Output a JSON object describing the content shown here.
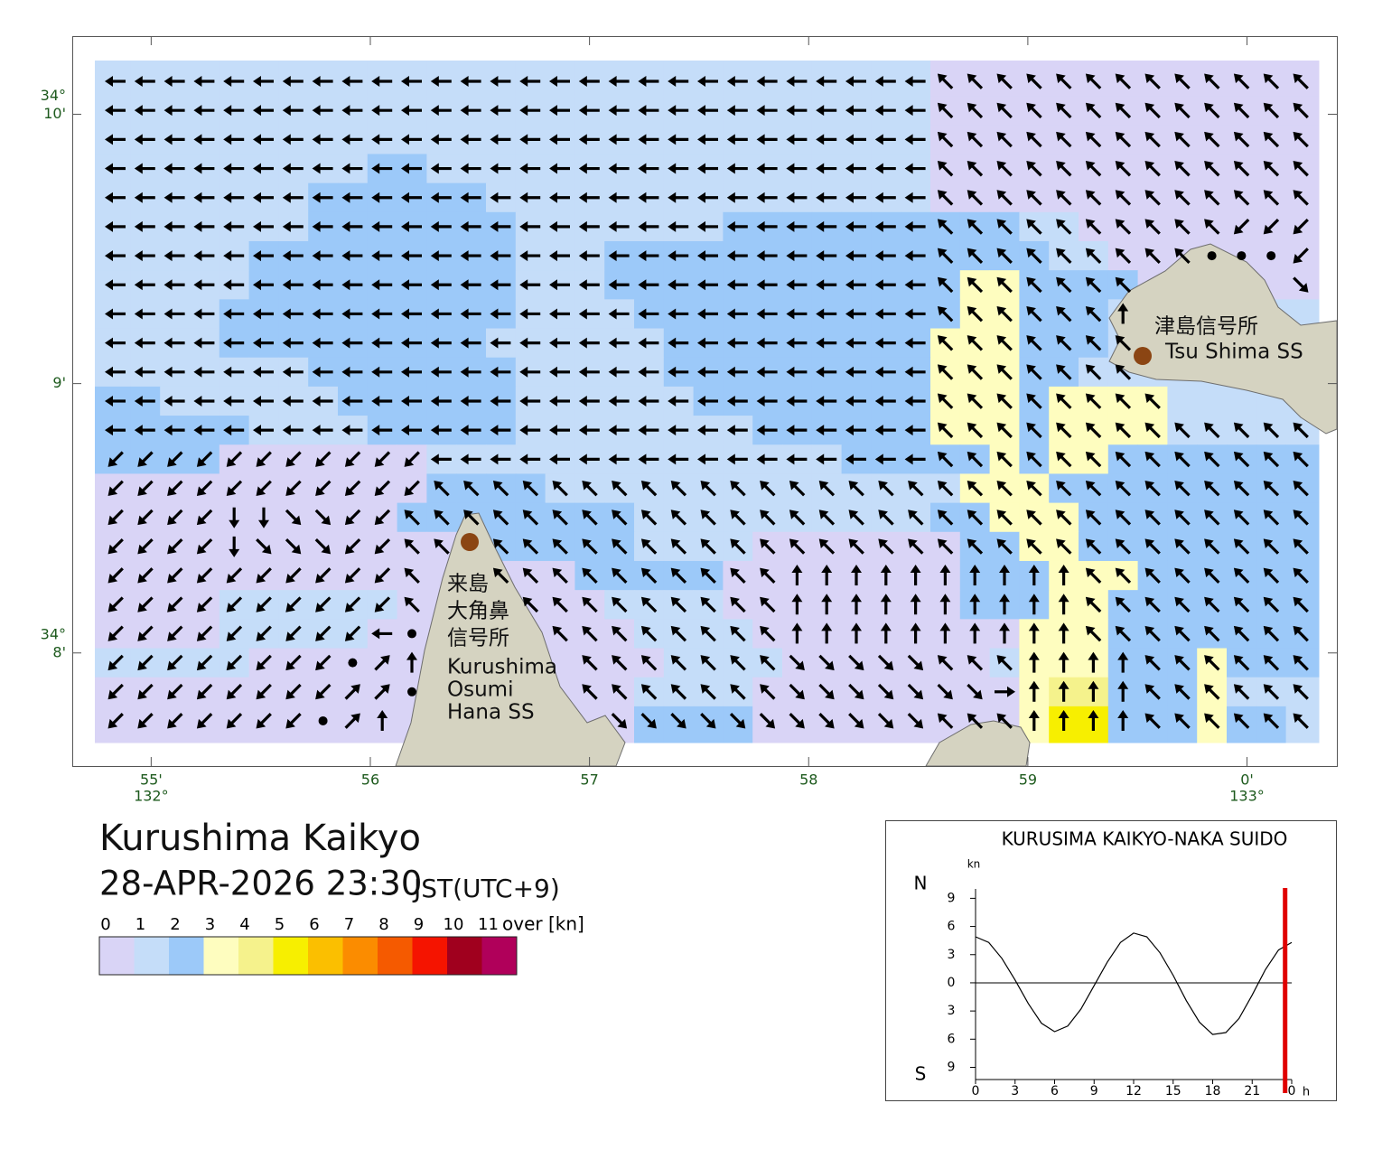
{
  "header": {
    "title": "Kurushima Kaikyo",
    "datetime": "28-APR-2026 23:30",
    "timezone": "JST(UTC+9)"
  },
  "legend": {
    "ticks": [
      0,
      1,
      2,
      3,
      4,
      5,
      6,
      7,
      8,
      9,
      10,
      11
    ],
    "unit": "over [kn]",
    "colors": [
      "#d9d4f6",
      "#c5ddf9",
      "#9cc9f9",
      "#fefdbf",
      "#f5f28c",
      "#f7ef00",
      "#fbbf00",
      "#fb8c00",
      "#f55a00",
      "#f51400",
      "#a0001e",
      "#b0005a"
    ]
  },
  "map": {
    "xlim": [
      54.64,
      60.41
    ],
    "ylim": [
      7.58,
      10.29
    ],
    "xticks": [
      {
        "value": 55,
        "label": "55'",
        "degree": "132°"
      },
      56,
      57,
      58,
      59,
      {
        "value": 60,
        "label": "0'",
        "degree": "133°"
      }
    ],
    "yticks": [
      {
        "value": 10,
        "label": "10'",
        "degree": "34°"
      },
      {
        "value": 9,
        "label": "9'"
      },
      {
        "value": 8,
        "label": "8'",
        "degree": "34°"
      }
    ],
    "sites": [
      {
        "lines": [
          "来島",
          "大角鼻",
          "信号所",
          "Kurushima",
          "Osumi",
          "Hana SS"
        ]
      },
      {
        "lines": [
          "津島信号所",
          "Tsu Shima SS"
        ]
      }
    ],
    "field": {
      "direction": [
        "44444444444444444444444444443333333333333",
        "44444444444444444444444444443333333333333",
        "44444444444444444444444444443333333333333",
        "44444444444444444444444444443333333333333",
        "44444444444444444444444444443333333333333",
        "44444444444444444444444444443333333333555",
        "44444444444444444444444444443333333338885",
        "44444444444444444444444444443333333999997",
        "44444444444444444444444444443333332999999",
        "44444444444444444444444444443333333999999",
        "44444444444444444444444444443333333999999",
        "44444444444444444444444444443333333399999",
        "44444444444444444444444444443333333333333",
        "55555555555444444444444444443333333333333",
        "55555555555333333333333333333333333333333",
        "55556677553333333333333333333333333333333",
        "55556777553393333333333333333333333333333",
        "55555555553993333333333222222222233333333",
        "55555555553999333333333222222222233333333",
        "55555555548999933333333222222222233333333",
        "55555555812999993333333777773332222333333",
        "55555555118999993333333777777702222333333",
        "55555558129999999777777777773332222333333"
      ],
      "speed": [
        "11111111111111111111111111110000000000000",
        "11111111111111111111111111110000000000000",
        "11111111111111111111111111110000000000000",
        "11111111122111111111111111110000000000000",
        "11111112222221111111111111110000000000000",
        "11111112222222111111122222222221100000000",
        "11111222222222111222222222222222110000000",
        "11111222222222111222222222222332222000000",
        "11112222222222111122222222222332221111111",
        "11112222222221111112222222223332221111111",
        "11111112222222111112222222223332211111111",
        "22111111222222111111222222223332333311111",
        "22222111122222111111112222223332333311111",
        "22220000000111111111111112222232332222222",
        "00000000000222211111111111111333222222222",
        "00000000002222222211111111112233322222222",
        "00000000000012222211110000000223322222222",
        "00000000000000002222200000000222333222222",
        "00001111110000000111100000000222332222222",
        "00001111100000000011110000000003332222222",
        "11111000000000000001111000000013332223222",
        "00000000000000000011110000000003442223111",
        "00000000000000000022220000000003552223221"
      ]
    }
  },
  "tide_chart": {
    "type": "line",
    "title": "KURUSIMA KAIKYO-NAKA SUIDO",
    "unit": "kn",
    "north": "N",
    "south": "S",
    "x_unit": "h",
    "x": [
      0,
      1,
      2,
      3,
      4,
      5,
      6,
      7,
      8,
      9,
      10,
      11,
      12,
      13,
      14,
      15,
      16,
      17,
      18,
      19,
      20,
      21,
      22,
      23,
      24
    ],
    "values": [
      4.9,
      4.3,
      2.6,
      0.3,
      -2.2,
      -4.3,
      -5.2,
      -4.6,
      -2.8,
      -0.3,
      2.2,
      4.3,
      5.3,
      4.9,
      3.2,
      0.8,
      -1.9,
      -4.2,
      -5.5,
      -5.3,
      -3.8,
      -1.3,
      1.4,
      3.5,
      4.3
    ],
    "color": "#000000",
    "xlim": [
      0,
      24
    ],
    "ylim": [
      -10.3,
      10
    ],
    "xticks": [
      0,
      3,
      6,
      9,
      12,
      15,
      18,
      21,
      {
        "value": 24,
        "label": "0"
      }
    ],
    "yticks": [
      9,
      6,
      3,
      0,
      {
        "value": -3,
        "label": "3"
      },
      {
        "value": -6,
        "label": "6"
      },
      {
        "value": -9,
        "label": "9"
      }
    ],
    "now": 23.5,
    "now_color": "#e00000"
  }
}
